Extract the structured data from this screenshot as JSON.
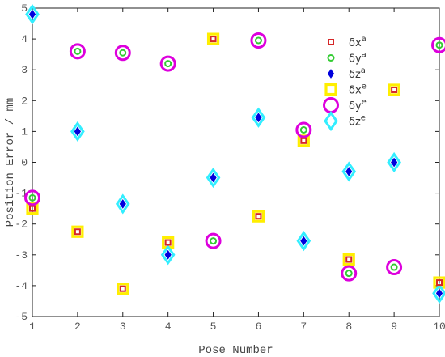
{
  "chart_data": {
    "type": "scatter",
    "title": "",
    "xlabel": "Pose Number",
    "ylabel": "Position Error / mm",
    "xlim": [
      1,
      10
    ],
    "ylim": [
      -5,
      5
    ],
    "xticks": [
      1,
      2,
      3,
      4,
      5,
      6,
      7,
      8,
      9,
      10
    ],
    "yticks": [
      -5,
      -4,
      -3,
      -2,
      -1,
      0,
      1,
      2,
      3,
      4,
      5
    ],
    "grid": false,
    "legend_position": "top-right",
    "x": [
      1,
      2,
      3,
      4,
      5,
      6,
      7,
      8,
      9,
      10
    ],
    "series": [
      {
        "name": "δx",
        "sup": "a",
        "marker": "square-small",
        "color": "#d62728",
        "values": [
          -1.5,
          -2.25,
          -4.1,
          -2.6,
          4.0,
          -1.75,
          0.7,
          -3.15,
          2.35,
          -3.9
        ]
      },
      {
        "name": "δy",
        "sup": "a",
        "marker": "circle-small",
        "color": "#33cc33",
        "values": [
          -1.15,
          3.6,
          3.55,
          3.2,
          -2.55,
          3.95,
          1.05,
          -3.6,
          -3.4,
          3.8
        ]
      },
      {
        "name": "δz",
        "sup": "a",
        "marker": "diamond-small",
        "color": "#0000dd",
        "values": [
          4.8,
          1.0,
          -1.35,
          -3.0,
          -0.5,
          1.45,
          -2.55,
          -0.3,
          0.0,
          -4.25
        ]
      },
      {
        "name": "δx",
        "sup": "e",
        "marker": "square-large",
        "color": "#ffee00",
        "values": [
          -1.5,
          -2.25,
          -4.1,
          -2.6,
          4.0,
          -1.75,
          0.7,
          -3.15,
          2.35,
          -3.9
        ]
      },
      {
        "name": "δy",
        "sup": "e",
        "marker": "circle-large",
        "color": "#dd00dd",
        "values": [
          -1.15,
          3.6,
          3.55,
          3.2,
          -2.55,
          3.95,
          1.05,
          -3.6,
          -3.4,
          3.8
        ]
      },
      {
        "name": "δz",
        "sup": "e",
        "marker": "diamond-large",
        "color": "#33eeff",
        "values": [
          4.8,
          1.0,
          -1.35,
          -3.0,
          -0.5,
          1.45,
          -2.55,
          -0.3,
          0.0,
          -4.25
        ]
      }
    ]
  }
}
